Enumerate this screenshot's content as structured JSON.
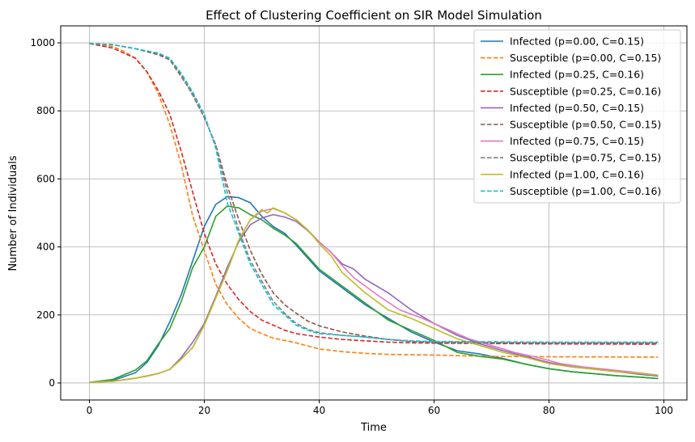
{
  "chart_data": {
    "type": "line",
    "title": "Effect of Clustering Coefficient on SIR Model Simulation",
    "xlabel": "Time",
    "ylabel": "Number of Individuals",
    "xlim": [
      -5,
      104
    ],
    "ylim": [
      -50,
      1050
    ],
    "xticks": [
      0,
      20,
      40,
      60,
      80,
      100
    ],
    "yticks": [
      0,
      200,
      400,
      600,
      800,
      1000
    ],
    "grid": true,
    "legend_position": "top-right",
    "series": [
      {
        "name": "Infected (p=0.00, C=0.15)",
        "color": "#1f77b4",
        "style": "solid",
        "points": [
          [
            0,
            2
          ],
          [
            4,
            7
          ],
          [
            8,
            30
          ],
          [
            10,
            60
          ],
          [
            12,
            110
          ],
          [
            14,
            180
          ],
          [
            16,
            260
          ],
          [
            18,
            360
          ],
          [
            20,
            460
          ],
          [
            22,
            525
          ],
          [
            24,
            548
          ],
          [
            26,
            545
          ],
          [
            28,
            530
          ],
          [
            30,
            490
          ],
          [
            32,
            460
          ],
          [
            34,
            440
          ],
          [
            36,
            405
          ],
          [
            40,
            330
          ],
          [
            44,
            280
          ],
          [
            48,
            230
          ],
          [
            52,
            190
          ],
          [
            56,
            150
          ],
          [
            60,
            120
          ],
          [
            64,
            95
          ],
          [
            68,
            85
          ],
          [
            72,
            72
          ],
          [
            76,
            55
          ],
          [
            80,
            42
          ],
          [
            84,
            33
          ],
          [
            88,
            27
          ],
          [
            92,
            21
          ],
          [
            96,
            17
          ],
          [
            99,
            13
          ]
        ]
      },
      {
        "name": "Susceptible (p=0.00, C=0.15)",
        "color": "#ff7f0e",
        "style": "dashed",
        "points": [
          [
            0,
            998
          ],
          [
            4,
            990
          ],
          [
            6,
            975
          ],
          [
            8,
            955
          ],
          [
            10,
            915
          ],
          [
            12,
            850
          ],
          [
            14,
            760
          ],
          [
            16,
            640
          ],
          [
            18,
            490
          ],
          [
            20,
            390
          ],
          [
            22,
            290
          ],
          [
            24,
            230
          ],
          [
            26,
            190
          ],
          [
            28,
            160
          ],
          [
            30,
            145
          ],
          [
            32,
            132
          ],
          [
            36,
            118
          ],
          [
            40,
            100
          ],
          [
            44,
            92
          ],
          [
            48,
            87
          ],
          [
            52,
            84
          ],
          [
            56,
            83
          ],
          [
            60,
            82
          ],
          [
            65,
            80
          ],
          [
            70,
            78
          ],
          [
            80,
            77
          ],
          [
            99,
            76
          ]
        ]
      },
      {
        "name": "Infected (p=0.25, C=0.16)",
        "color": "#2ca02c",
        "style": "solid",
        "points": [
          [
            0,
            2
          ],
          [
            4,
            10
          ],
          [
            8,
            38
          ],
          [
            10,
            65
          ],
          [
            12,
            115
          ],
          [
            14,
            160
          ],
          [
            16,
            240
          ],
          [
            18,
            340
          ],
          [
            20,
            400
          ],
          [
            22,
            490
          ],
          [
            24,
            520
          ],
          [
            26,
            515
          ],
          [
            28,
            495
          ],
          [
            30,
            480
          ],
          [
            32,
            455
          ],
          [
            34,
            435
          ],
          [
            36,
            410
          ],
          [
            40,
            335
          ],
          [
            44,
            285
          ],
          [
            48,
            235
          ],
          [
            52,
            185
          ],
          [
            56,
            155
          ],
          [
            60,
            125
          ],
          [
            64,
            90
          ],
          [
            68,
            78
          ],
          [
            72,
            70
          ],
          [
            76,
            55
          ],
          [
            80,
            42
          ],
          [
            84,
            33
          ],
          [
            88,
            27
          ],
          [
            92,
            21
          ],
          [
            96,
            17
          ],
          [
            99,
            13
          ]
        ]
      },
      {
        "name": "Susceptible (p=0.25, C=0.16)",
        "color": "#d62728",
        "style": "dashed",
        "points": [
          [
            0,
            998
          ],
          [
            4,
            985
          ],
          [
            6,
            970
          ],
          [
            8,
            955
          ],
          [
            10,
            915
          ],
          [
            12,
            860
          ],
          [
            14,
            790
          ],
          [
            16,
            680
          ],
          [
            18,
            560
          ],
          [
            20,
            440
          ],
          [
            22,
            350
          ],
          [
            24,
            290
          ],
          [
            26,
            245
          ],
          [
            28,
            210
          ],
          [
            30,
            185
          ],
          [
            32,
            170
          ],
          [
            34,
            155
          ],
          [
            36,
            145
          ],
          [
            40,
            135
          ],
          [
            44,
            128
          ],
          [
            48,
            124
          ],
          [
            52,
            120
          ],
          [
            56,
            118
          ],
          [
            60,
            117
          ],
          [
            70,
            116
          ],
          [
            80,
            115
          ],
          [
            99,
            114
          ]
        ]
      },
      {
        "name": "Infected (p=0.50, C=0.15)",
        "color": "#9467bd",
        "style": "solid",
        "points": [
          [
            0,
            2
          ],
          [
            4,
            5
          ],
          [
            8,
            14
          ],
          [
            10,
            20
          ],
          [
            12,
            28
          ],
          [
            14,
            40
          ],
          [
            16,
            75
          ],
          [
            18,
            120
          ],
          [
            20,
            175
          ],
          [
            22,
            255
          ],
          [
            24,
            340
          ],
          [
            26,
            415
          ],
          [
            28,
            465
          ],
          [
            30,
            485
          ],
          [
            32,
            495
          ],
          [
            34,
            488
          ],
          [
            36,
            475
          ],
          [
            38,
            448
          ],
          [
            40,
            415
          ],
          [
            42,
            385
          ],
          [
            44,
            350
          ],
          [
            46,
            335
          ],
          [
            48,
            305
          ],
          [
            52,
            265
          ],
          [
            56,
            215
          ],
          [
            60,
            175
          ],
          [
            64,
            140
          ],
          [
            68,
            115
          ],
          [
            72,
            95
          ],
          [
            76,
            78
          ],
          [
            80,
            60
          ],
          [
            84,
            48
          ],
          [
            88,
            40
          ],
          [
            92,
            33
          ],
          [
            96,
            25
          ],
          [
            99,
            20
          ]
        ]
      },
      {
        "name": "Susceptible (p=0.50, C=0.15)",
        "color": "#8c564b",
        "style": "dashed",
        "points": [
          [
            0,
            998
          ],
          [
            4,
            995
          ],
          [
            8,
            983
          ],
          [
            12,
            965
          ],
          [
            14,
            950
          ],
          [
            16,
            900
          ],
          [
            18,
            850
          ],
          [
            20,
            780
          ],
          [
            22,
            700
          ],
          [
            24,
            580
          ],
          [
            26,
            480
          ],
          [
            28,
            390
          ],
          [
            30,
            320
          ],
          [
            32,
            265
          ],
          [
            34,
            230
          ],
          [
            36,
            205
          ],
          [
            38,
            182
          ],
          [
            40,
            168
          ],
          [
            44,
            150
          ],
          [
            48,
            138
          ],
          [
            52,
            128
          ],
          [
            56,
            122
          ],
          [
            60,
            119
          ],
          [
            70,
            118
          ],
          [
            80,
            117
          ],
          [
            99,
            117
          ]
        ]
      },
      {
        "name": "Infected (p=0.75, C=0.15)",
        "color": "#e377c2",
        "style": "solid",
        "points": [
          [
            0,
            2
          ],
          [
            4,
            5
          ],
          [
            8,
            14
          ],
          [
            12,
            28
          ],
          [
            14,
            40
          ],
          [
            16,
            70
          ],
          [
            18,
            105
          ],
          [
            20,
            170
          ],
          [
            22,
            250
          ],
          [
            24,
            330
          ],
          [
            26,
            420
          ],
          [
            28,
            480
          ],
          [
            30,
            505
          ],
          [
            32,
            513
          ],
          [
            34,
            500
          ],
          [
            36,
            480
          ],
          [
            38,
            450
          ],
          [
            40,
            415
          ],
          [
            42,
            385
          ],
          [
            44,
            345
          ],
          [
            46,
            310
          ],
          [
            50,
            260
          ],
          [
            54,
            215
          ],
          [
            58,
            190
          ],
          [
            62,
            160
          ],
          [
            66,
            130
          ],
          [
            70,
            110
          ],
          [
            74,
            90
          ],
          [
            78,
            75
          ],
          [
            82,
            57
          ],
          [
            86,
            47
          ],
          [
            90,
            40
          ],
          [
            94,
            33
          ],
          [
            99,
            23
          ]
        ]
      },
      {
        "name": "Susceptible (p=0.75, C=0.15)",
        "color": "#7f7f7f",
        "style": "dashed",
        "points": [
          [
            0,
            998
          ],
          [
            4,
            995
          ],
          [
            8,
            983
          ],
          [
            12,
            968
          ],
          [
            14,
            955
          ],
          [
            16,
            905
          ],
          [
            18,
            845
          ],
          [
            20,
            780
          ],
          [
            22,
            700
          ],
          [
            24,
            560
          ],
          [
            26,
            450
          ],
          [
            28,
            360
          ],
          [
            30,
            300
          ],
          [
            32,
            240
          ],
          [
            34,
            205
          ],
          [
            36,
            175
          ],
          [
            38,
            158
          ],
          [
            40,
            148
          ],
          [
            44,
            140
          ],
          [
            48,
            135
          ],
          [
            52,
            128
          ],
          [
            56,
            122
          ],
          [
            60,
            120
          ],
          [
            70,
            119
          ],
          [
            80,
            118
          ],
          [
            99,
            118
          ]
        ]
      },
      {
        "name": "Infected (p=1.00, C=0.16)",
        "color": "#bcbd22",
        "style": "solid",
        "points": [
          [
            0,
            2
          ],
          [
            4,
            5
          ],
          [
            8,
            14
          ],
          [
            12,
            28
          ],
          [
            14,
            40
          ],
          [
            16,
            70
          ],
          [
            18,
            105
          ],
          [
            20,
            170
          ],
          [
            22,
            250
          ],
          [
            24,
            330
          ],
          [
            26,
            420
          ],
          [
            28,
            480
          ],
          [
            30,
            510
          ],
          [
            31,
            500
          ],
          [
            32,
            515
          ],
          [
            34,
            500
          ],
          [
            36,
            480
          ],
          [
            38,
            450
          ],
          [
            40,
            410
          ],
          [
            42,
            375
          ],
          [
            44,
            325
          ],
          [
            46,
            295
          ],
          [
            48,
            265
          ],
          [
            52,
            215
          ],
          [
            56,
            190
          ],
          [
            60,
            160
          ],
          [
            64,
            130
          ],
          [
            68,
            110
          ],
          [
            72,
            90
          ],
          [
            76,
            75
          ],
          [
            80,
            57
          ],
          [
            84,
            47
          ],
          [
            88,
            40
          ],
          [
            92,
            33
          ],
          [
            96,
            28
          ],
          [
            99,
            23
          ]
        ]
      },
      {
        "name": "Susceptible (p=1.00, C=0.16)",
        "color": "#17becf",
        "style": "dashed",
        "points": [
          [
            0,
            998
          ],
          [
            4,
            995
          ],
          [
            8,
            983
          ],
          [
            12,
            970
          ],
          [
            14,
            955
          ],
          [
            16,
            910
          ],
          [
            18,
            855
          ],
          [
            20,
            790
          ],
          [
            22,
            690
          ],
          [
            24,
            530
          ],
          [
            26,
            440
          ],
          [
            28,
            350
          ],
          [
            30,
            290
          ],
          [
            32,
            230
          ],
          [
            34,
            200
          ],
          [
            36,
            170
          ],
          [
            38,
            155
          ],
          [
            40,
            145
          ],
          [
            44,
            140
          ],
          [
            48,
            135
          ],
          [
            52,
            128
          ],
          [
            56,
            124
          ],
          [
            60,
            122
          ],
          [
            70,
            121
          ],
          [
            80,
            120
          ],
          [
            99,
            120
          ]
        ]
      }
    ]
  }
}
